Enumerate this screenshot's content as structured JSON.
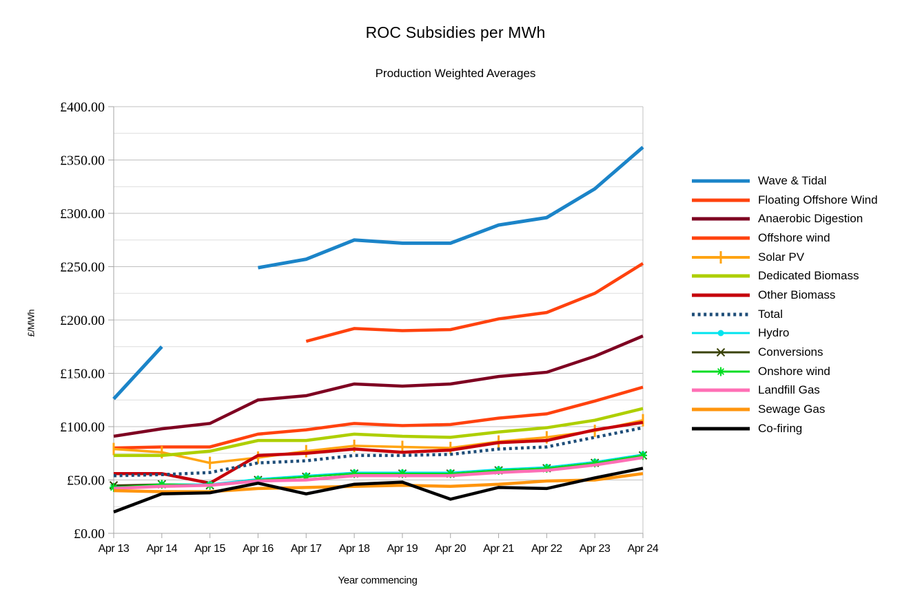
{
  "chart_data": {
    "type": "line",
    "title": "ROC Subsidies per MWh",
    "subtitle": "Production Weighted Averages",
    "xlabel": "Year commencing",
    "ylabel": "£/MWh",
    "x_categories": [
      "Apr 13",
      "Apr 14",
      "Apr 15",
      "Apr 16",
      "Apr 17",
      "Apr 18",
      "Apr 19",
      "Apr 20",
      "Apr 21",
      "Apr 22",
      "Apr 23",
      "Apr 24"
    ],
    "ylim": [
      0,
      400
    ],
    "y_major_step": 50,
    "y_minor_step": 25,
    "y_tick_labels": [
      "£0.00",
      "£50.00",
      "£100.00",
      "£150.00",
      "£200.00",
      "£250.00",
      "£300.00",
      "£350.00",
      "£400.00"
    ],
    "grid": "horizontal, major £50 + minor £25",
    "legend_position": "right",
    "series": [
      {
        "name": "Wave & Tidal",
        "color": "#1b84c8",
        "width": 5,
        "marker": "none",
        "dash": "solid",
        "values": [
          126,
          175,
          null,
          249,
          257,
          275,
          272,
          272,
          289,
          296,
          323,
          362
        ]
      },
      {
        "name": "Floating Offshore Wind",
        "color": "#ff420e",
        "width": 4.5,
        "marker": "none",
        "dash": "solid",
        "values": [
          null,
          null,
          null,
          null,
          180,
          192,
          190,
          191,
          201,
          207,
          225,
          253
        ]
      },
      {
        "name": "Anaerobic Digestion",
        "color": "#7e0021",
        "width": 4.5,
        "marker": "none",
        "dash": "solid",
        "values": [
          91,
          98,
          103,
          125,
          129,
          140,
          138,
          140,
          147,
          151,
          166,
          185
        ]
      },
      {
        "name": "Offshore wind",
        "color": "#ff420e",
        "width": 4.5,
        "marker": "none",
        "dash": "solid",
        "values": [
          80,
          81,
          81,
          93,
          97,
          103,
          101,
          102,
          108,
          112,
          124,
          137
        ]
      },
      {
        "name": "Solar PV",
        "color": "#ffa413",
        "width": 3.5,
        "marker": "plus",
        "dash": "solid",
        "values": [
          79,
          76,
          66,
          71,
          77,
          82,
          81,
          80,
          86,
          90,
          96,
          106
        ]
      },
      {
        "name": "Dedicated Biomass",
        "color": "#aecf00",
        "width": 4.5,
        "marker": "none",
        "dash": "solid",
        "values": [
          73,
          73,
          77,
          87,
          87,
          93,
          91,
          90,
          95,
          99,
          106,
          117
        ]
      },
      {
        "name": "Other Biomass",
        "color": "#c5000b",
        "width": 4.5,
        "marker": "none",
        "dash": "solid",
        "values": [
          56,
          56,
          47,
          73,
          75,
          79,
          76,
          78,
          85,
          87,
          97,
          104
        ]
      },
      {
        "name": "Total",
        "color": "#1f4e79",
        "width": 4.5,
        "marker": "none",
        "dash": "dotted",
        "values": [
          54,
          55,
          57,
          66,
          68,
          73,
          73,
          74,
          79,
          81,
          90,
          99
        ]
      },
      {
        "name": "Hydro",
        "color": "#00e4ee",
        "width": 2.5,
        "marker": "circle",
        "dash": "solid",
        "values": [
          44,
          46,
          46,
          51,
          54,
          57,
          57,
          57,
          60,
          62,
          67,
          74
        ]
      },
      {
        "name": "Conversions",
        "color": "#3a4208",
        "width": 2.5,
        "marker": "x",
        "dash": "solid",
        "values": [
          45,
          46,
          45,
          50,
          53,
          56,
          56,
          56,
          59,
          61,
          66,
          73
        ]
      },
      {
        "name": "Onshore wind",
        "color": "#00dd22",
        "width": 2.5,
        "marker": "star",
        "dash": "solid",
        "values": [
          43,
          46,
          45,
          50,
          53,
          56,
          56,
          56,
          59,
          61,
          66,
          73
        ]
      },
      {
        "name": "Landfill Gas",
        "color": "#ff6fb5",
        "width": 4.5,
        "marker": "none",
        "dash": "solid",
        "values": [
          42,
          44,
          45,
          49,
          50,
          54,
          54,
          54,
          57,
          59,
          64,
          71
        ]
      },
      {
        "name": "Sewage Gas",
        "color": "#ff950e",
        "width": 4.5,
        "marker": "none",
        "dash": "solid",
        "values": [
          40,
          39,
          39,
          42,
          43,
          44,
          45,
          44,
          46,
          49,
          50,
          56
        ]
      },
      {
        "name": "Co-firing",
        "color": "#000000",
        "width": 4.5,
        "marker": "none",
        "dash": "solid",
        "values": [
          20,
          37,
          38,
          47,
          37,
          46,
          48,
          32,
          43,
          42,
          52,
          61
        ]
      }
    ]
  },
  "style_colors": {
    "axis": "#a6a6a6",
    "grid_major": "#c0c0c0",
    "grid_minor": "#dedede",
    "text": "#000000"
  }
}
